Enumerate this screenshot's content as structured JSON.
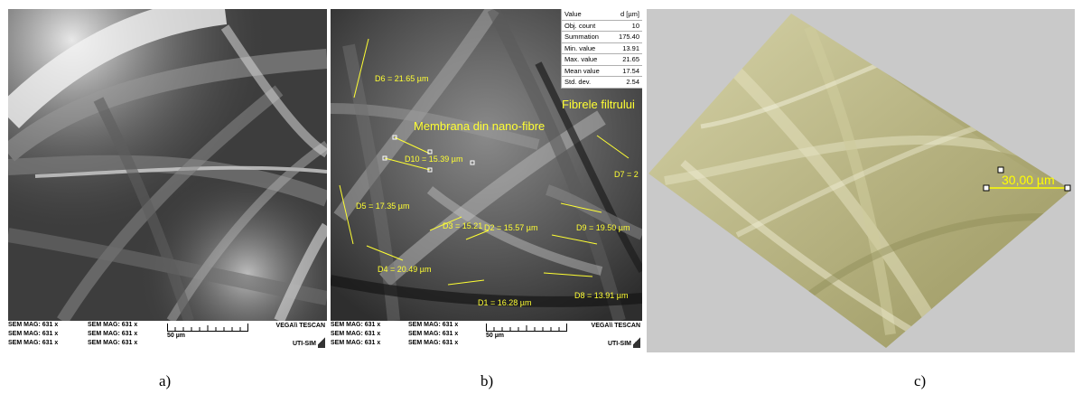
{
  "panel_a": {
    "caption": "a)",
    "footer": {
      "mag_labels": [
        "SEM MAG: 631 x",
        "SEM MAG: 631 x",
        "SEM MAG: 631 x",
        "SEM MAG: 631 x",
        "SEM MAG: 631 x",
        "SEM MAG: 631 x"
      ],
      "scale_label": "50 µm",
      "brand": "VEGA\\\\ TESCAN",
      "org": "UTI-SIM"
    }
  },
  "panel_b": {
    "caption": "b)",
    "stats_table": {
      "header": [
        "Value",
        "d [µm]"
      ],
      "rows": [
        [
          "Obj. count",
          "10"
        ],
        [
          "Summation",
          "175.40"
        ],
        [
          "Min. value",
          "13.91"
        ],
        [
          "Max. value",
          "21.65"
        ],
        [
          "Mean value",
          "17.54"
        ],
        [
          "Std. dev.",
          "2.54"
        ]
      ]
    },
    "annotation_membrane": "Membrana din nano-fibre",
    "annotation_filter": "Fibrele filtrului",
    "measurements": [
      "D6 = 21.65 µm",
      "D10 = 15.39 µm",
      "D7 = 2",
      "D5 = 17.35 µm",
      "D3 = 15.21",
      "D2 = 15.57 µm",
      "D9 = 19.50 µm",
      "D4 = 20.49 µm",
      "D1 = 16.28 µm",
      "D8 = 13.91 µm"
    ],
    "footer": {
      "mag_labels": [
        "SEM MAG: 631 x",
        "SEM MAG: 631 x",
        "SEM MAG: 631 x",
        "SEM MAG: 631 x",
        "SEM MAG: 631 x",
        "SEM MAG: 631 x"
      ],
      "scale_label": "50 µm",
      "brand": "VEGA\\\\ TESCAN",
      "org": "UTI-SIM"
    }
  },
  "panel_c": {
    "caption": "c)",
    "measurement": "30,00 µm"
  },
  "colors": {
    "annotation_yellow": "#ffff33",
    "surface_olive": "#b9b584",
    "background_gray": "#c9c9c9"
  }
}
